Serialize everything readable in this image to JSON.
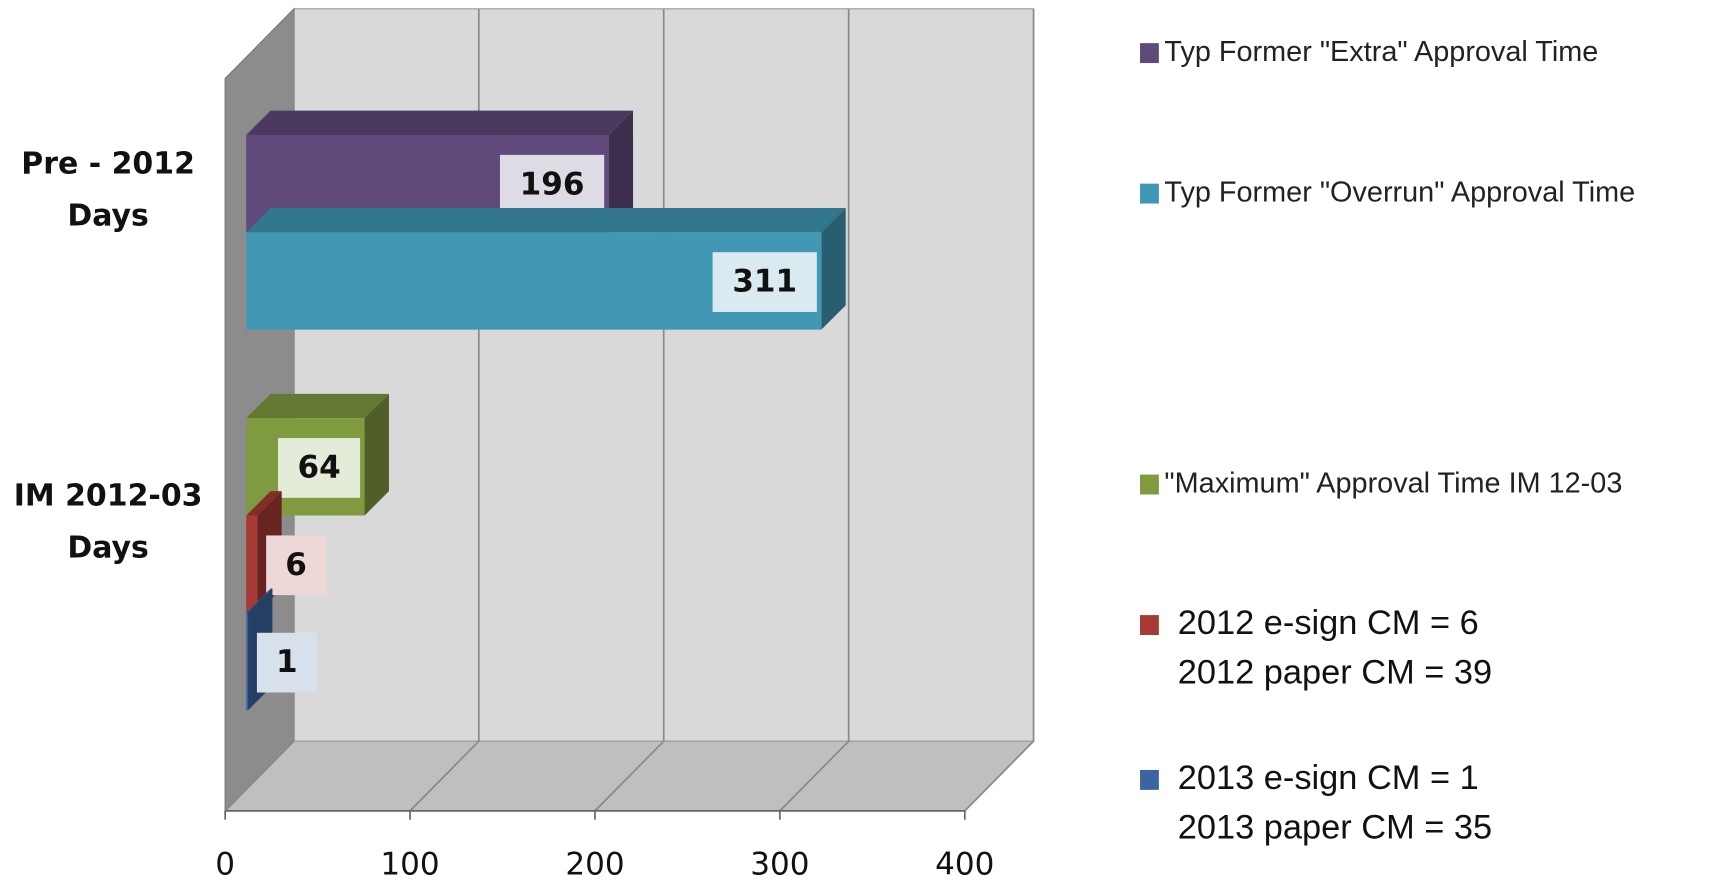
{
  "chart_data": {
    "type": "bar3d_horizontal",
    "categories": [
      "Pre - 2012\nDays",
      "IM 2012-03\nDays"
    ],
    "series": [
      {
        "name": "Typ Former \"Extra\"  Approval Time",
        "color": "#604a7b",
        "values": [
          196,
          null
        ]
      },
      {
        "name": "Typ Former \"Overrun\" Approval Time",
        "color": "#4198b4",
        "values": [
          311,
          null
        ]
      },
      {
        "name": "\"Maximum\" Approval Time IM 12-03",
        "color": "#7f9a3f",
        "values": [
          null,
          64
        ]
      },
      {
        "name": "2012 e-sign CM = 6\n2012 paper CM = 39",
        "color": "#a83a36",
        "values": [
          null,
          6
        ]
      },
      {
        "name": "2013 e-sign CM = 1\n2013 paper CM = 35",
        "color": "#3c64a0",
        "values": [
          null,
          1
        ]
      }
    ],
    "xlim": [
      0,
      400
    ],
    "xticks": [
      0,
      100,
      200,
      300,
      400
    ],
    "grid": true,
    "legend": "right"
  }
}
